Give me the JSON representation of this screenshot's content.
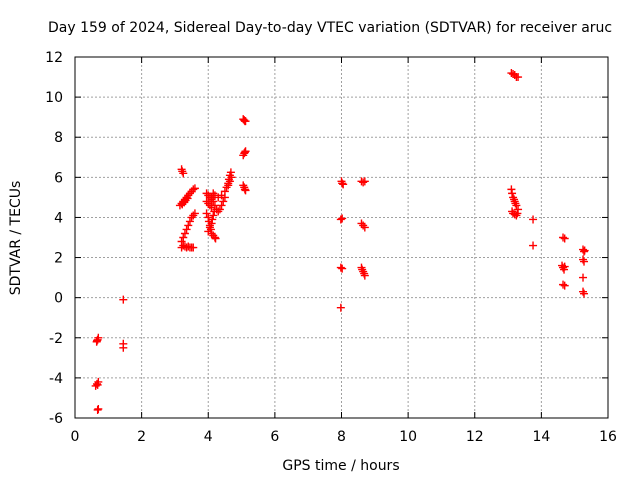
{
  "chart_data": {
    "type": "scatter",
    "title": "Day 159 of 2024, Sidereal Day-to-day VTEC variation (SDTVAR) for receiver aruc",
    "xlabel": "GPS time / hours",
    "ylabel": "SDTVAR / TECUs",
    "xlim": [
      0,
      16
    ],
    "ylim": [
      -6,
      12
    ],
    "x_ticks": [
      0,
      2,
      4,
      6,
      8,
      10,
      12,
      14,
      16
    ],
    "y_ticks": [
      -6,
      -4,
      -2,
      0,
      2,
      4,
      6,
      8,
      10,
      12
    ],
    "grid": true,
    "marker": "+",
    "color": "#ff0000",
    "series": [
      {
        "name": "SDTVAR",
        "points": [
          [
            0.65,
            -2.2
          ],
          [
            0.68,
            -2.1
          ],
          [
            0.7,
            -2.0
          ],
          [
            0.66,
            -2.15
          ],
          [
            0.62,
            -4.4
          ],
          [
            0.66,
            -4.3
          ],
          [
            0.7,
            -4.2
          ],
          [
            0.68,
            -4.35
          ],
          [
            0.68,
            -5.6
          ],
          [
            0.7,
            -5.55
          ],
          [
            1.45,
            -0.1
          ],
          [
            1.45,
            -2.3
          ],
          [
            1.45,
            -2.5
          ],
          [
            3.2,
            6.4
          ],
          [
            3.22,
            6.3
          ],
          [
            3.25,
            6.2
          ],
          [
            3.15,
            4.6
          ],
          [
            3.2,
            4.7
          ],
          [
            3.25,
            4.8
          ],
          [
            3.3,
            4.9
          ],
          [
            3.35,
            5.0
          ],
          [
            3.4,
            5.1
          ],
          [
            3.45,
            5.2
          ],
          [
            3.5,
            5.3
          ],
          [
            3.55,
            5.4
          ],
          [
            3.6,
            5.45
          ],
          [
            3.22,
            4.65
          ],
          [
            3.28,
            4.75
          ],
          [
            3.32,
            4.85
          ],
          [
            3.38,
            4.95
          ],
          [
            3.2,
            2.5
          ],
          [
            3.25,
            2.6
          ],
          [
            3.3,
            2.55
          ],
          [
            3.35,
            2.5
          ],
          [
            3.4,
            2.55
          ],
          [
            3.45,
            2.5
          ],
          [
            3.5,
            2.5
          ],
          [
            3.55,
            2.5
          ],
          [
            3.2,
            2.8
          ],
          [
            3.25,
            3.0
          ],
          [
            3.3,
            3.2
          ],
          [
            3.35,
            3.4
          ],
          [
            3.4,
            3.6
          ],
          [
            3.45,
            3.8
          ],
          [
            3.5,
            4.0
          ],
          [
            3.55,
            4.1
          ],
          [
            3.6,
            4.2
          ],
          [
            3.95,
            5.2
          ],
          [
            4.0,
            5.1
          ],
          [
            4.05,
            5.0
          ],
          [
            4.1,
            4.9
          ],
          [
            3.95,
            4.8
          ],
          [
            4.0,
            4.7
          ],
          [
            4.05,
            4.6
          ],
          [
            4.1,
            4.5
          ],
          [
            3.95,
            4.2
          ],
          [
            4.0,
            4.0
          ],
          [
            4.02,
            3.8
          ],
          [
            4.05,
            3.6
          ],
          [
            4.08,
            3.4
          ],
          [
            4.1,
            3.2
          ],
          [
            4.15,
            3.1
          ],
          [
            4.2,
            3.0
          ],
          [
            4.22,
            2.95
          ],
          [
            4.0,
            3.3
          ],
          [
            4.05,
            3.5
          ],
          [
            4.1,
            3.7
          ],
          [
            4.12,
            3.9
          ],
          [
            4.15,
            4.1
          ],
          [
            4.18,
            4.3
          ],
          [
            4.1,
            5.0
          ],
          [
            4.15,
            4.8
          ],
          [
            4.2,
            4.6
          ],
          [
            4.25,
            4.4
          ],
          [
            4.3,
            4.3
          ],
          [
            4.35,
            4.4
          ],
          [
            4.4,
            4.6
          ],
          [
            4.45,
            4.8
          ],
          [
            4.5,
            5.0
          ],
          [
            4.15,
            5.2
          ],
          [
            4.2,
            5.1
          ],
          [
            4.3,
            5.0
          ],
          [
            4.4,
            5.1
          ],
          [
            4.5,
            5.3
          ],
          [
            4.55,
            5.5
          ],
          [
            4.6,
            5.7
          ],
          [
            4.62,
            5.9
          ],
          [
            4.65,
            6.1
          ],
          [
            4.68,
            6.25
          ],
          [
            4.6,
            5.6
          ],
          [
            4.65,
            5.8
          ],
          [
            4.7,
            6.0
          ],
          [
            5.05,
            8.9
          ],
          [
            5.08,
            8.85
          ],
          [
            5.1,
            8.8
          ],
          [
            5.12,
            8.8
          ],
          [
            5.05,
            7.1
          ],
          [
            5.08,
            7.2
          ],
          [
            5.1,
            7.25
          ],
          [
            5.12,
            7.3
          ],
          [
            5.05,
            5.6
          ],
          [
            5.08,
            5.5
          ],
          [
            5.1,
            5.4
          ],
          [
            5.12,
            5.35
          ],
          [
            8.0,
            5.8
          ],
          [
            8.02,
            5.7
          ],
          [
            8.05,
            5.65
          ],
          [
            7.98,
            3.9
          ],
          [
            8.02,
            3.95
          ],
          [
            7.98,
            1.5
          ],
          [
            8.02,
            1.45
          ],
          [
            7.98,
            -0.5
          ],
          [
            8.6,
            5.8
          ],
          [
            8.65,
            5.75
          ],
          [
            8.7,
            5.8
          ],
          [
            8.6,
            3.7
          ],
          [
            8.65,
            3.6
          ],
          [
            8.7,
            3.5
          ],
          [
            8.6,
            1.5
          ],
          [
            8.62,
            1.4
          ],
          [
            8.65,
            1.3
          ],
          [
            8.68,
            1.2
          ],
          [
            8.7,
            1.1
          ],
          [
            13.1,
            11.2
          ],
          [
            13.15,
            11.15
          ],
          [
            13.2,
            11.1
          ],
          [
            13.25,
            11.0
          ],
          [
            13.3,
            11.0
          ],
          [
            13.1,
            5.4
          ],
          [
            13.12,
            5.2
          ],
          [
            13.15,
            5.0
          ],
          [
            13.18,
            4.9
          ],
          [
            13.2,
            4.8
          ],
          [
            13.22,
            4.7
          ],
          [
            13.25,
            4.6
          ],
          [
            13.12,
            4.3
          ],
          [
            13.15,
            4.2
          ],
          [
            13.2,
            4.15
          ],
          [
            13.25,
            4.1
          ],
          [
            13.28,
            4.2
          ],
          [
            13.3,
            4.4
          ],
          [
            13.75,
            3.9
          ],
          [
            13.75,
            2.6
          ],
          [
            14.65,
            3.0
          ],
          [
            14.7,
            2.95
          ],
          [
            14.62,
            1.6
          ],
          [
            14.65,
            1.5
          ],
          [
            14.68,
            1.4
          ],
          [
            14.7,
            1.55
          ],
          [
            14.65,
            0.65
          ],
          [
            14.7,
            0.6
          ],
          [
            15.25,
            2.4
          ],
          [
            15.3,
            2.35
          ],
          [
            15.28,
            2.3
          ],
          [
            15.25,
            1.9
          ],
          [
            15.28,
            1.8
          ],
          [
            15.25,
            1.0
          ],
          [
            15.25,
            0.3
          ],
          [
            15.28,
            0.2
          ]
        ]
      }
    ]
  }
}
